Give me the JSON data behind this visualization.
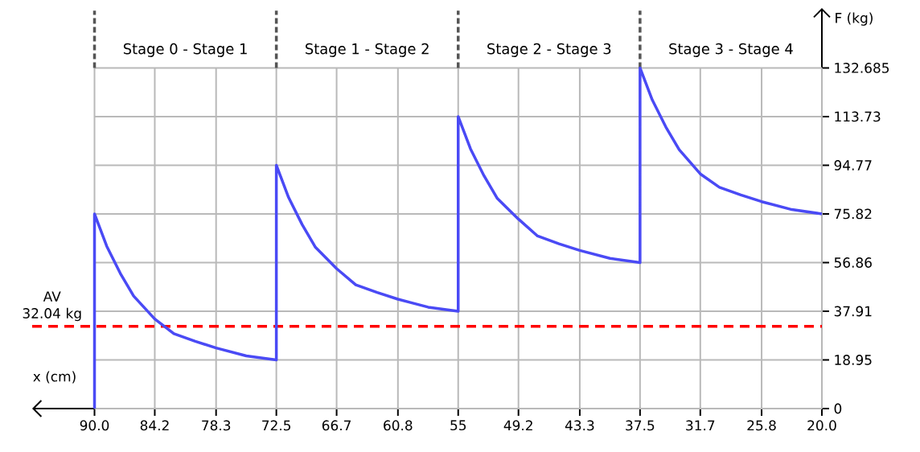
{
  "chart_data": {
    "type": "line",
    "xlabel": "x (cm)",
    "ylabel": "F (kg)",
    "xlim": [
      96,
      20
    ],
    "ylim": [
      0,
      156
    ],
    "xticks": [
      {
        "value": 90,
        "label": "90.0"
      },
      84.2,
      78.3,
      72.5,
      66.7,
      60.8,
      55,
      49.2,
      43.3,
      37.5,
      31.7,
      25.8,
      {
        "value": 20,
        "label": "20.0"
      }
    ],
    "yticks": [
      0,
      18.95,
      37.91,
      56.86,
      75.82,
      94.77,
      113.73,
      132.685
    ],
    "grid": true,
    "series": [
      {
        "color": "#4a4af5",
        "x": [
          90,
          90,
          88.82,
          87.52,
          86.23,
          84.2,
          82.36,
          80.3,
          78.3,
          75.39,
          72.5,
          72.5,
          71.32,
          70.02,
          68.73,
          66.7,
          64.86,
          62.8,
          60.8,
          57.89,
          55,
          55,
          53.82,
          52.52,
          51.23,
          49.2,
          47.36,
          45.3,
          43.3,
          40.39,
          37.5,
          37.5,
          36.32,
          35.02,
          33.73,
          31.7,
          29.86,
          27.8,
          25.8,
          22.89,
          20
        ],
        "values": [
          0,
          75.82,
          63.2,
          52.7,
          43.8,
          34.9,
          29.2,
          26.2,
          23.6,
          20.5,
          18.95,
          94.77,
          82.2,
          71.7,
          62.8,
          54.5,
          48.2,
          45.2,
          42.6,
          39.5,
          37.91,
          113.73,
          101.2,
          90.7,
          81.8,
          73.8,
          67.2,
          64.2,
          61.6,
          58.5,
          56.86,
          132.685,
          120.2,
          109.7,
          100.8,
          91.4,
          86.2,
          83.2,
          80.6,
          77.5,
          75.82
        ]
      }
    ],
    "ref_lines": [
      {
        "axis": "y",
        "value": 32.04,
        "label": "AV 32.04 kg",
        "color": "#ff0000",
        "line_style": "dashed"
      },
      {
        "axis": "x",
        "value": 90,
        "color": "#555555",
        "line_style": "dashed"
      },
      {
        "axis": "x",
        "value": 72.5,
        "color": "#555555",
        "line_style": "dashed"
      },
      {
        "axis": "x",
        "value": 55,
        "color": "#555555",
        "line_style": "dashed"
      },
      {
        "axis": "x",
        "value": 37.5,
        "color": "#555555",
        "line_style": "dashed"
      }
    ],
    "annotations": [
      "Stage 0 - Stage 1",
      "Stage 1 - Stage 2",
      "Stage 2 - Stage 3",
      "Stage 3 - Stage 4"
    ]
  }
}
